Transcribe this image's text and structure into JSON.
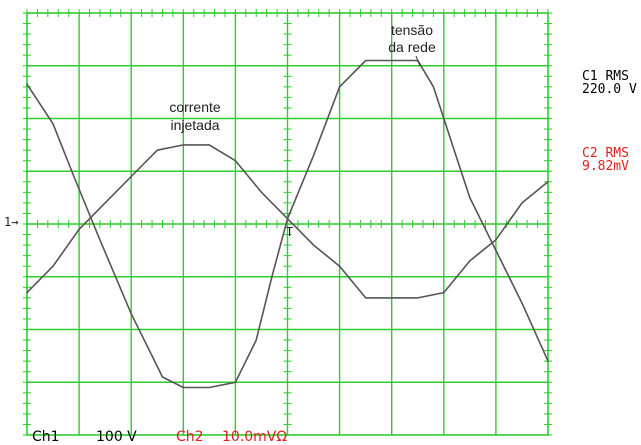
{
  "chart_data": {
    "type": "line",
    "title": "",
    "xlabel": "",
    "ylabel": "",
    "grid": true,
    "time_axis": {
      "divisions": 10,
      "x": [
        0,
        1,
        2,
        3,
        4,
        5,
        6,
        7,
        8,
        9,
        10
      ]
    },
    "amplitude_axis": {
      "divisions": 8,
      "ylim": [
        -4,
        4
      ]
    },
    "series": [
      {
        "name": "tensão da rede",
        "channel": "Ch1",
        "color": "#555555",
        "x": [
          0,
          0.5,
          0.9,
          1.4,
          2.0,
          2.6,
          3.0,
          3.5,
          4.0,
          4.4,
          4.7,
          5.0,
          5.5,
          6.0,
          6.5,
          7.0,
          7.5,
          7.8,
          8.2,
          8.5,
          9.0,
          9.5,
          10.0
        ],
        "y": [
          2.65,
          1.9,
          0.9,
          -0.3,
          -1.7,
          -2.9,
          -3.1,
          -3.1,
          -3.0,
          -2.2,
          -1.0,
          0.1,
          1.3,
          2.6,
          3.1,
          3.1,
          3.1,
          2.6,
          1.4,
          0.5,
          -0.5,
          -1.5,
          -2.6
        ]
      },
      {
        "name": "corrente injetada",
        "channel": "Ch2",
        "color": "#555555",
        "x": [
          0,
          0.5,
          1.0,
          1.5,
          2.0,
          2.5,
          3.0,
          3.5,
          4.0,
          4.5,
          5.0,
          5.5,
          6.0,
          6.5,
          7.0,
          7.5,
          8.0,
          8.5,
          9.0,
          9.5,
          10.0
        ],
        "y": [
          -1.3,
          -0.8,
          -0.1,
          0.4,
          0.9,
          1.4,
          1.5,
          1.5,
          1.2,
          0.6,
          0.1,
          -0.4,
          -0.8,
          -1.4,
          -1.4,
          -1.4,
          -1.3,
          -0.7,
          -0.3,
          0.4,
          0.8
        ]
      }
    ],
    "annotations": [
      {
        "text_lines": [
          "tensão",
          "da rede"
        ],
        "series": "tensão da rede"
      },
      {
        "text_lines": [
          "corrente",
          "injetada"
        ],
        "series": "corrente injetada"
      }
    ],
    "ground_marker": "1→",
    "trigger_marker": "T"
  },
  "readouts": {
    "c1_label": "C1 RMS",
    "c1_value": "220.0 V",
    "c2_label": "C2 RMS",
    "c2_value": "9.82mV",
    "c1_color": "#000000",
    "c2_color": "#e02020"
  },
  "footer": {
    "ch1_label": "Ch1",
    "ch1_scale": "100 V",
    "ch2_label": "Ch2",
    "ch2_scale": "10.0mVΩ",
    "ch1_color": "#000000",
    "ch2_color": "#e02020"
  },
  "colors": {
    "grid": "#2ecc2e",
    "trace": "#555555",
    "background": "#ffffff"
  }
}
